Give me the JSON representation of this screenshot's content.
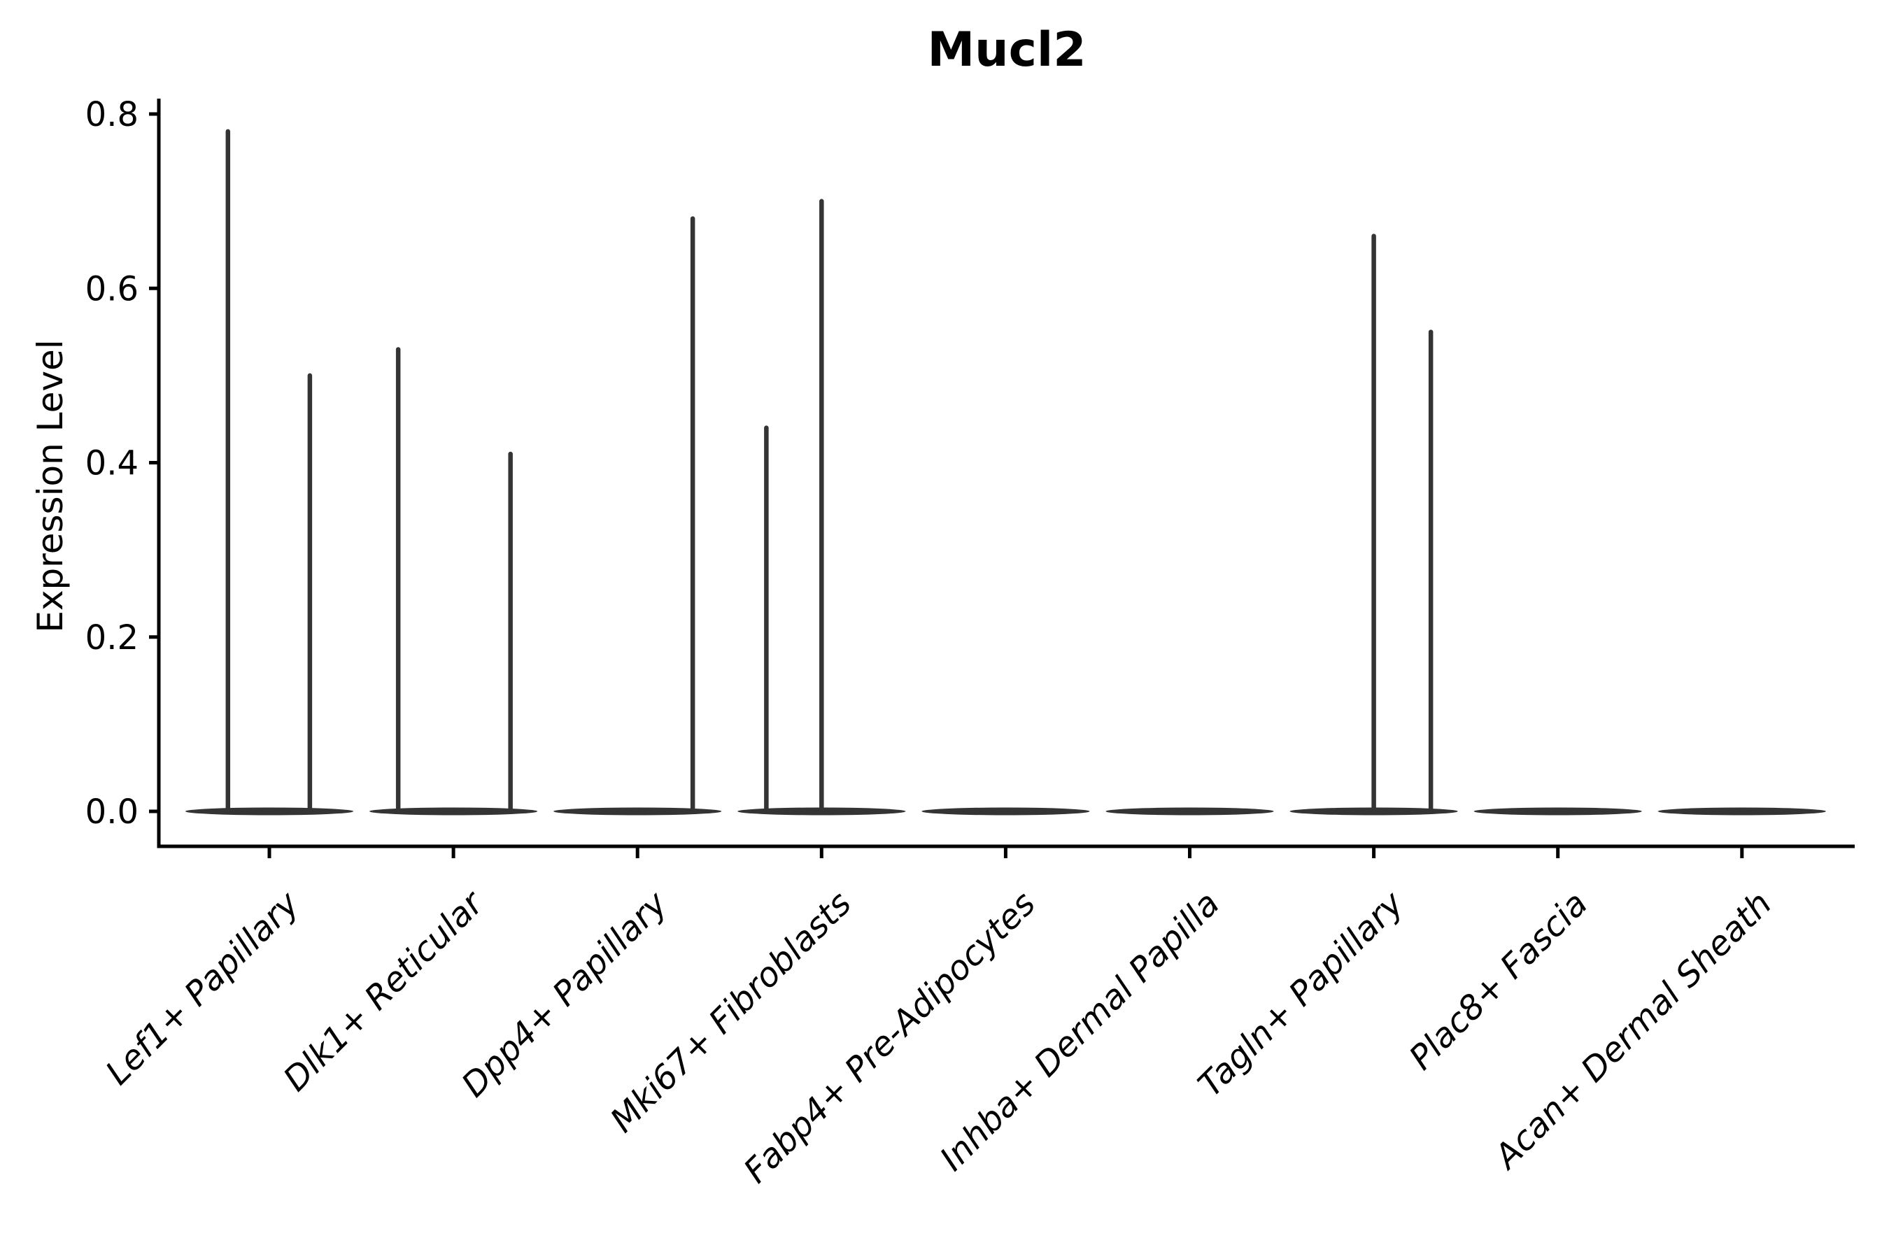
{
  "figure": {
    "title": "Mucl2",
    "y_axis_label": "Expression Level"
  },
  "colors": {
    "violin": "#343434",
    "axis": "#000000",
    "text": "#000000",
    "background": "#ffffff"
  },
  "chart_data": {
    "type": "violin",
    "title": "Mucl2",
    "xlabel": "",
    "ylabel": "Expression Level",
    "ylim": [
      0,
      0.8
    ],
    "grid": false,
    "legend": false,
    "ytick_values": [
      0,
      0.2,
      0.4,
      0.6,
      0.8
    ],
    "ytick_labels": [
      "0.0",
      "0.2",
      "0.4",
      "0.6",
      "0.8"
    ],
    "categories": [
      "Lef1+ Papillary",
      "Dlk1+ Reticular",
      "Dpp4+ Papillary",
      "Mki67+ Fibroblasts",
      "Fabp4+ Pre-Adipocytes",
      "Inhba+ Dermal Papilla",
      "Tagln+ Papillary",
      "Plac8+ Fascia",
      "Acan+ Dermal Sheath"
    ],
    "violins": [
      {
        "category": "Lef1+ Papillary",
        "baseline_value": 0,
        "spikes": [
          {
            "value": 0.78,
            "offset_frac": -0.225
          },
          {
            "value": 0.5,
            "offset_frac": 0.22
          }
        ]
      },
      {
        "category": "Dlk1+ Reticular",
        "baseline_value": 0,
        "spikes": [
          {
            "value": 0.53,
            "offset_frac": -0.3
          },
          {
            "value": 0.41,
            "offset_frac": 0.31
          }
        ]
      },
      {
        "category": "Dpp4+ Papillary",
        "baseline_value": 0,
        "spikes": [
          {
            "value": 0.68,
            "offset_frac": 0.3
          }
        ]
      },
      {
        "category": "Mki67+ Fibroblasts",
        "baseline_value": 0,
        "spikes": [
          {
            "value": 0.44,
            "offset_frac": -0.3
          },
          {
            "value": 0.7,
            "offset_frac": 0.0
          }
        ]
      },
      {
        "category": "Fabp4+ Pre-Adipocytes",
        "baseline_value": 0,
        "spikes": []
      },
      {
        "category": "Inhba+ Dermal Papilla",
        "baseline_value": 0,
        "spikes": []
      },
      {
        "category": "Tagln+ Papillary",
        "baseline_value": 0,
        "spikes": [
          {
            "value": 0.66,
            "offset_frac": 0.0
          },
          {
            "value": 0.55,
            "offset_frac": 0.31
          }
        ]
      },
      {
        "category": "Plac8+ Fascia",
        "baseline_value": 0,
        "spikes": []
      },
      {
        "category": "Acan+ Dermal Sheath",
        "baseline_value": 0,
        "spikes": []
      }
    ]
  }
}
